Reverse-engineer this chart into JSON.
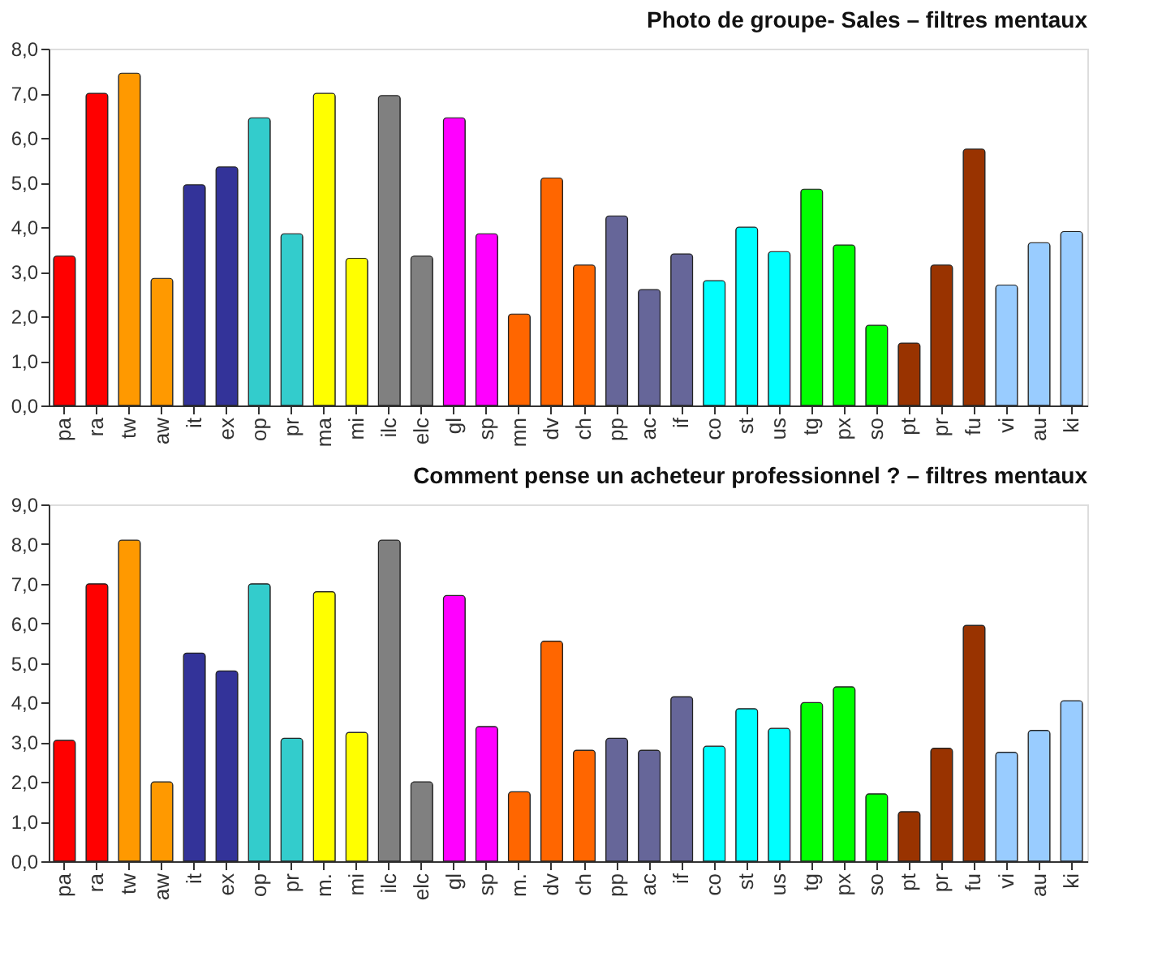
{
  "chart_data": [
    {
      "type": "bar",
      "title": "Photo de groupe- Sales – filtres mentaux",
      "categories": [
        "pa",
        "ra",
        "tw",
        "aw",
        "it",
        "ex",
        "op",
        "pr",
        "ma",
        "mi",
        "ilc",
        "elc",
        "gl",
        "sp",
        "mn",
        "dv",
        "ch",
        "pp",
        "ac",
        "if",
        "co",
        "st",
        "us",
        "tg",
        "px",
        "so",
        "pt",
        "pr",
        "fu",
        "vi",
        "au",
        "ki"
      ],
      "values": [
        3.35,
        7.0,
        7.45,
        2.85,
        4.95,
        5.35,
        6.45,
        3.85,
        7.0,
        3.3,
        6.95,
        3.35,
        6.45,
        3.85,
        2.05,
        5.1,
        3.15,
        4.25,
        2.6,
        3.4,
        2.8,
        4.0,
        3.45,
        4.85,
        3.6,
        1.8,
        1.4,
        3.15,
        5.75,
        2.7,
        3.65,
        3.9
      ],
      "colors": [
        "#ff0000",
        "#ff0000",
        "#ff9900",
        "#ff9900",
        "#333399",
        "#333399",
        "#33cccc",
        "#33cccc",
        "#ffff00",
        "#ffff00",
        "#808080",
        "#808080",
        "#ff00ff",
        "#ff00ff",
        "#ff6600",
        "#ff6600",
        "#ff6600",
        "#666699",
        "#666699",
        "#666699",
        "#00ffff",
        "#00ffff",
        "#00ffff",
        "#00ff00",
        "#00ff00",
        "#00ff00",
        "#993300",
        "#993300",
        "#993300",
        "#99ccff",
        "#99ccff",
        "#99ccff"
      ],
      "ylim": [
        0,
        8
      ],
      "yticks": [
        {
          "value": 0,
          "label": "0,0"
        },
        {
          "value": 1,
          "label": "1,0"
        },
        {
          "value": 2,
          "label": "2,0"
        },
        {
          "value": 3,
          "label": "3,0"
        },
        {
          "value": 4,
          "label": "4,0"
        },
        {
          "value": 5,
          "label": "5,0"
        },
        {
          "value": 6,
          "label": "6,0"
        },
        {
          "value": 7,
          "label": "7,0"
        },
        {
          "value": 8,
          "label": "8,0"
        }
      ],
      "grid": false
    },
    {
      "type": "bar",
      "title": "Comment pense un acheteur professionnel ? – filtres mentaux",
      "categories": [
        "pa",
        "ra",
        "tw",
        "aw",
        "it",
        "ex",
        "op",
        "pr",
        "m.",
        "mi",
        "ilc",
        "elc",
        "gl",
        "sp",
        "m.",
        "dv",
        "ch",
        "pp",
        "ac",
        "if",
        "co",
        "st",
        "us",
        "tg",
        "px",
        "so",
        "pt",
        "pr",
        "fu",
        "vi",
        "au",
        "ki"
      ],
      "values": [
        3.05,
        7.0,
        8.1,
        2.0,
        5.25,
        4.8,
        7.0,
        3.1,
        6.8,
        3.25,
        8.1,
        2.0,
        6.7,
        3.4,
        1.75,
        5.55,
        2.8,
        3.1,
        2.8,
        4.15,
        2.9,
        3.85,
        3.35,
        4.0,
        4.4,
        1.7,
        1.25,
        2.85,
        5.95,
        2.75,
        3.3,
        4.05
      ],
      "colors": [
        "#ff0000",
        "#ff0000",
        "#ff9900",
        "#ff9900",
        "#333399",
        "#333399",
        "#33cccc",
        "#33cccc",
        "#ffff00",
        "#ffff00",
        "#808080",
        "#808080",
        "#ff00ff",
        "#ff00ff",
        "#ff6600",
        "#ff6600",
        "#ff6600",
        "#666699",
        "#666699",
        "#666699",
        "#00ffff",
        "#00ffff",
        "#00ffff",
        "#00ff00",
        "#00ff00",
        "#00ff00",
        "#993300",
        "#993300",
        "#993300",
        "#99ccff",
        "#99ccff",
        "#99ccff"
      ],
      "ylim": [
        0,
        9
      ],
      "yticks": [
        {
          "value": 0,
          "label": "0,0"
        },
        {
          "value": 1,
          "label": "1,0"
        },
        {
          "value": 2,
          "label": "2,0"
        },
        {
          "value": 3,
          "label": "3,0"
        },
        {
          "value": 4,
          "label": "4,0"
        },
        {
          "value": 5,
          "label": "5,0"
        },
        {
          "value": 6,
          "label": "6,0"
        },
        {
          "value": 7,
          "label": "7,0"
        },
        {
          "value": 8,
          "label": "8,0"
        },
        {
          "value": 9,
          "label": "9,0"
        }
      ],
      "grid": false
    }
  ]
}
